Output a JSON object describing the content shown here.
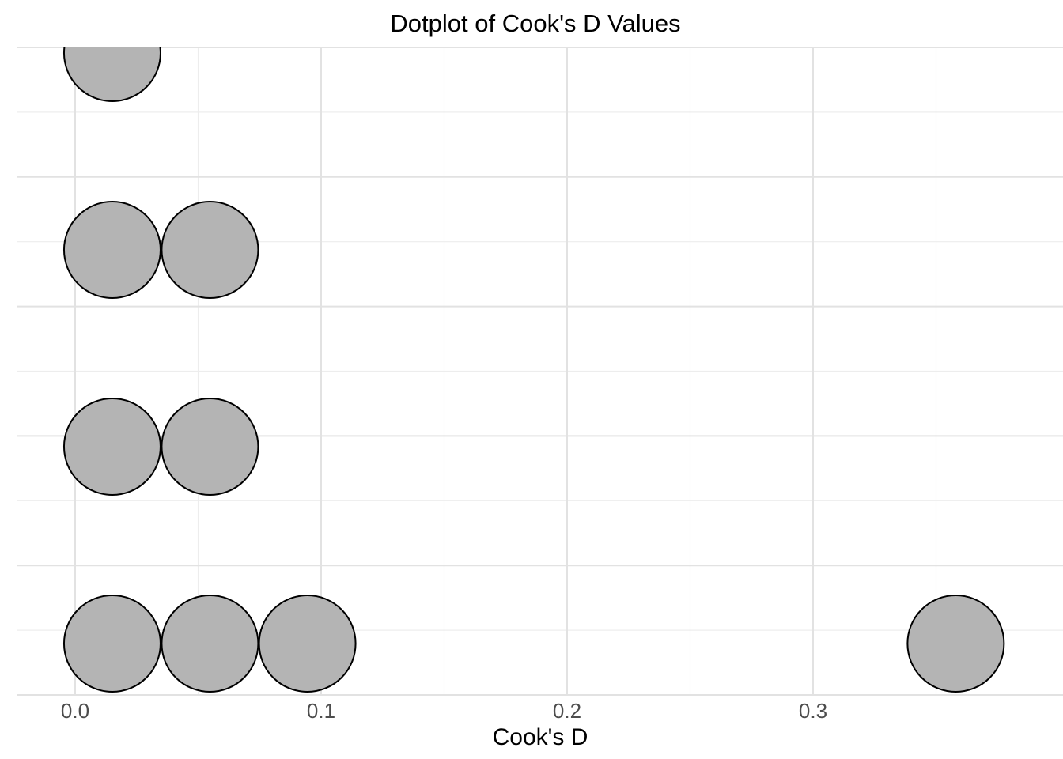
{
  "chart_data": {
    "type": "dotplot",
    "title": "Dotplot of Cook's D Values",
    "xlabel": "Cook's D",
    "ylabel": "",
    "legend": "none",
    "grid": "major and minor gridlines, no axis lines, no tick marks (ggplot theme_minimal style)",
    "x_ticks": [
      0.0,
      0.1,
      0.2,
      0.3
    ],
    "x_tick_labels": [
      "0.0",
      "0.1",
      "0.2",
      "0.3"
    ],
    "x_minor_ticks": [
      0.05,
      0.15,
      0.25,
      0.35
    ],
    "xlim": [
      -0.0235,
      0.4016
    ],
    "stacks": [
      {
        "x": 0.0151,
        "count": 4
      },
      {
        "x": 0.0548,
        "count": 3
      },
      {
        "x": 0.0944,
        "count": 1
      },
      {
        "x": 0.358,
        "count": 1
      }
    ],
    "values_flat": [
      0.0151,
      0.0151,
      0.0151,
      0.0151,
      0.0548,
      0.0548,
      0.0548,
      0.0944,
      0.358
    ],
    "style": {
      "dot_fill": "#b4b4b4",
      "dot_stroke": "#000000",
      "grid_major_color": "#e2e2e2",
      "grid_minor_color": "#ededed",
      "tick_label_color": "#4d4d4d",
      "title_color": "#000000",
      "background": "#ffffff"
    }
  }
}
